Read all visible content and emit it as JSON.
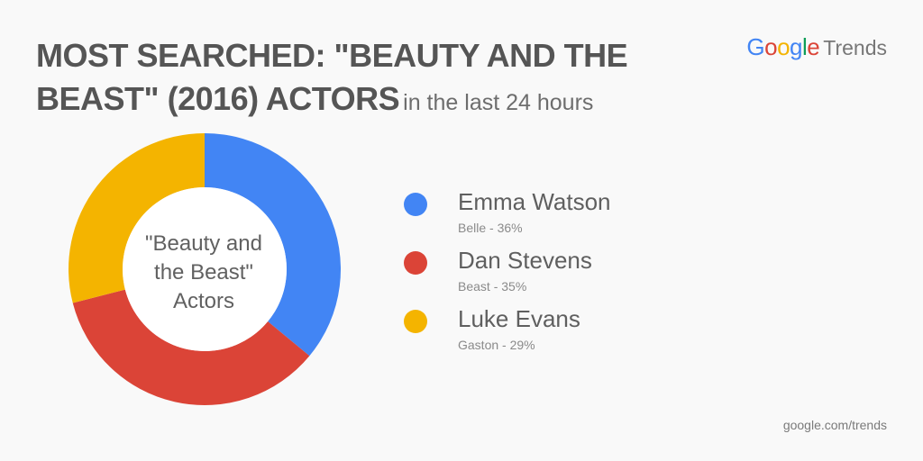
{
  "header": {
    "title": "MOST SEARCHED: \"BEAUTY AND THE BEAST\" (2016) ACTORS",
    "subtitle": "in the last 24 hours"
  },
  "brand": {
    "google_letters": [
      {
        "char": "G",
        "color": "#4285F4"
      },
      {
        "char": "o",
        "color": "#DB4437"
      },
      {
        "char": "o",
        "color": "#F4B400"
      },
      {
        "char": "g",
        "color": "#4285F4"
      },
      {
        "char": "l",
        "color": "#0F9D58"
      },
      {
        "char": "e",
        "color": "#DB4437"
      }
    ],
    "suffix": "Trends"
  },
  "footer": {
    "text": "google.com/trends"
  },
  "chart_data": {
    "type": "pie",
    "donut": true,
    "center_label_lines": [
      "\"Beauty and",
      "the Beast\"",
      "Actors"
    ],
    "slices": [
      {
        "name": "Emma Watson",
        "detail": "Belle - 36%",
        "value": 36,
        "color": "#4285F4"
      },
      {
        "name": "Dan Stevens",
        "detail": "Beast - 35%",
        "value": 35,
        "color": "#DB4437"
      },
      {
        "name": "Luke Evans",
        "detail": "Gaston - 29%",
        "value": 29,
        "color": "#F4B400"
      }
    ],
    "start": "top",
    "direction": "clockwise",
    "legend_position": "right"
  }
}
